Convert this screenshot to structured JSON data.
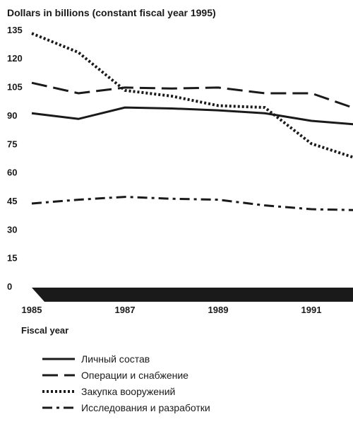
{
  "chart_data": {
    "type": "line",
    "title": "Dollars in billions (constant fiscal year 1995)",
    "xlabel": "Fiscal year",
    "ylabel": "",
    "x": [
      1985,
      1986,
      1987,
      1988,
      1989,
      1990,
      1991,
      1992
    ],
    "xticks": [
      "1985",
      "1987",
      "1989",
      "1991"
    ],
    "xtick_values": [
      1985,
      1987,
      1989,
      1991
    ],
    "yticks": [
      0,
      15,
      30,
      45,
      60,
      75,
      90,
      105,
      120,
      135
    ],
    "ylim": [
      0,
      135
    ],
    "xlim": [
      1985,
      1992
    ],
    "grid": false,
    "legend_position": "bottom-left",
    "series": [
      {
        "name": "Личный состав",
        "style": "solid",
        "values": [
          91,
          88,
          94,
          93.5,
          92.5,
          91,
          87,
          85
        ]
      },
      {
        "name": "Операции и снабжение",
        "style": "dashed",
        "values": [
          107,
          101.5,
          104.5,
          104,
          104.5,
          101.5,
          101.5,
          93
        ]
      },
      {
        "name": "Закупка вооружений",
        "style": "dotted",
        "values": [
          133,
          123,
          103,
          100,
          95,
          94,
          75,
          67
        ]
      },
      {
        "name": "Исследования и разработки",
        "style": "dashdot",
        "values": [
          43.5,
          45.5,
          47,
          46,
          45.5,
          42.5,
          40.5,
          40
        ]
      }
    ]
  },
  "colors": {
    "line": "#1a1a1a",
    "axis_band": "#1a1a1a"
  }
}
